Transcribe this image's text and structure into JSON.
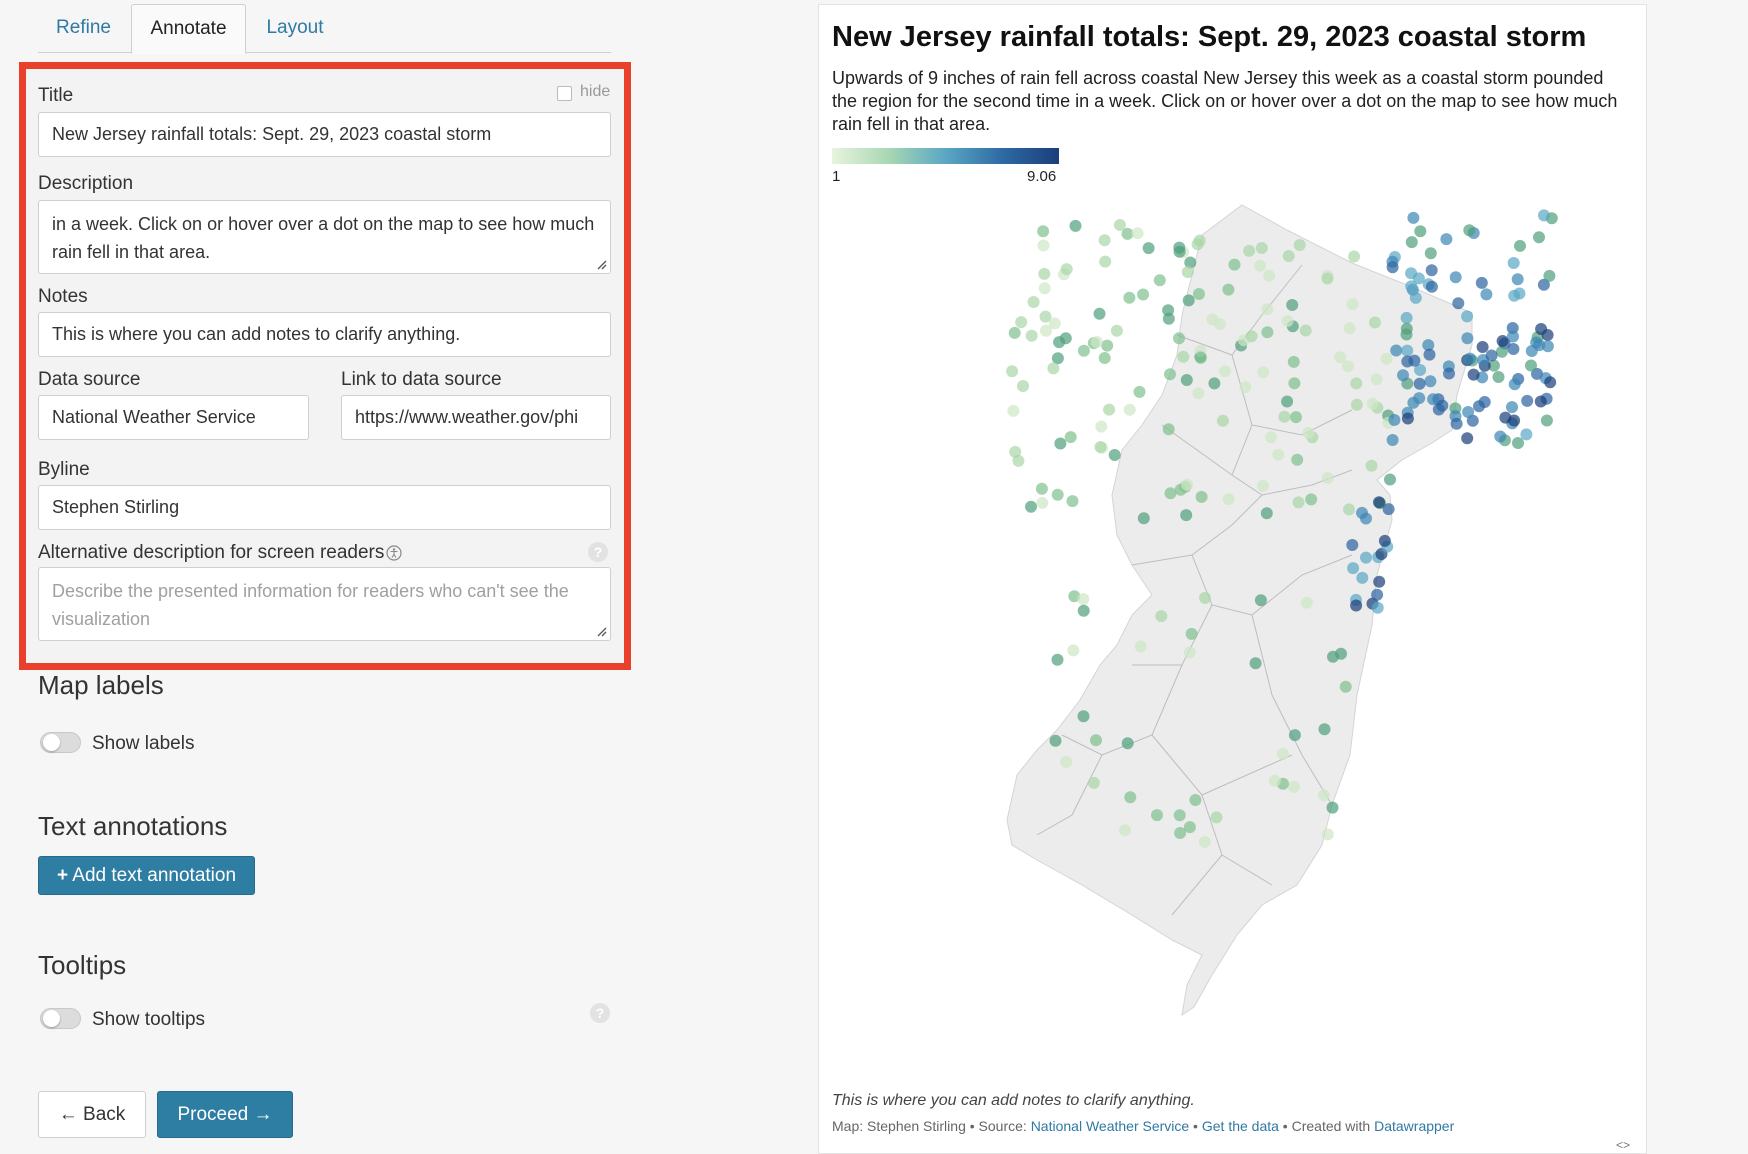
{
  "tabs": [
    {
      "label": "Refine"
    },
    {
      "label": "Annotate"
    },
    {
      "label": "Layout"
    }
  ],
  "annotate": {
    "title_label": "Title",
    "hide_label": "hide",
    "title_value": "New Jersey rainfall totals: Sept. 29, 2023 coastal storm",
    "description_label": "Description",
    "description_visible": "in a week. Click on or hover over a dot on the map to see how much rain fell in that area.",
    "notes_label": "Notes",
    "notes_value": "This is where you can add notes to clarify anything.",
    "source_label": "Data source",
    "source_value": "National Weather Service",
    "link_label": "Link to data source",
    "link_value": "https://www.weather.gov/phi",
    "byline_label": "Byline",
    "byline_value": "Stephen Stirling",
    "alt_label": "Alternative description for screen readers",
    "alt_placeholder": "Describe the presented information for readers who can't see the visualization"
  },
  "map_labels": {
    "heading": "Map labels",
    "toggle_label": "Show labels"
  },
  "text_annotations": {
    "heading": "Text annotations",
    "add_button": "Add text annotation"
  },
  "tooltips": {
    "heading": "Tooltips",
    "toggle_label": "Show tooltips"
  },
  "nav": {
    "back": "Back",
    "proceed": "Proceed"
  },
  "chart": {
    "title": "New Jersey rainfall totals: Sept. 29, 2023 coastal storm",
    "description": "Upwards of 9 inches of rain fell across coastal New Jersey this week as a coastal storm pounded the region for the second time in a week. Click on or hover over a dot on the map to see how much rain fell in that area.",
    "legend_min": "1",
    "legend_max": "9.06",
    "notes": "This is where you can add notes to clarify anything.",
    "footer_prefix": "Map: Stephen Stirling • Source: ",
    "footer_source": "National Weather Service",
    "footer_sep1": " • ",
    "footer_get_data": "Get the data",
    "footer_sep2": " • Created with ",
    "footer_created": "Datawrapper"
  },
  "colors": {
    "accent": "#2e7da3",
    "highlight_border": "#e8402b",
    "scale_low": "#e9f4df",
    "scale_high": "#1a3e7a"
  }
}
